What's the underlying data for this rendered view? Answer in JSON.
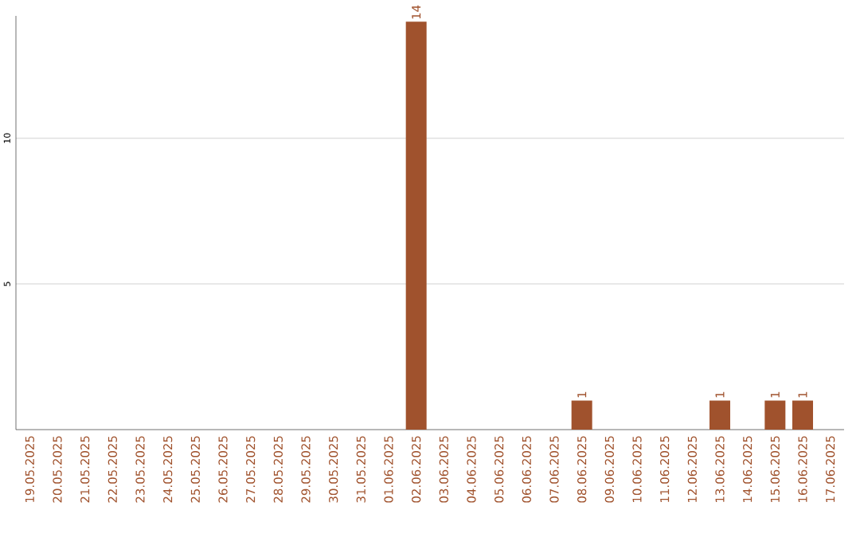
{
  "chart_data": {
    "type": "bar",
    "color": "#a0522d",
    "categories": [
      "19.05.2025",
      "20.05.2025",
      "21.05.2025",
      "22.05.2025",
      "23.05.2025",
      "24.05.2025",
      "25.05.2025",
      "26.05.2025",
      "27.05.2025",
      "28.05.2025",
      "29.05.2025",
      "30.05.2025",
      "31.05.2025",
      "01.06.2025",
      "02.06.2025",
      "03.06.2025",
      "04.06.2025",
      "05.06.2025",
      "06.06.2025",
      "07.06.2025",
      "08.06.2025",
      "09.06.2025",
      "10.06.2025",
      "11.06.2025",
      "12.06.2025",
      "13.06.2025",
      "14.06.2025",
      "15.06.2025",
      "16.06.2025",
      "17.06.2025"
    ],
    "values": [
      0,
      0,
      0,
      0,
      0,
      0,
      0,
      0,
      0,
      0,
      0,
      0,
      0,
      0,
      14,
      0,
      0,
      0,
      0,
      0,
      1,
      0,
      0,
      0,
      0,
      1,
      0,
      1,
      1,
      0
    ],
    "value_labels": [
      null,
      null,
      null,
      null,
      null,
      null,
      null,
      null,
      null,
      null,
      null,
      null,
      null,
      null,
      "14",
      null,
      null,
      null,
      null,
      null,
      "1",
      null,
      null,
      null,
      null,
      "1",
      null,
      "1",
      "1",
      null
    ],
    "ylim": [
      0,
      14.2
    ],
    "yticks": [
      5,
      10
    ],
    "grid": "y"
  }
}
